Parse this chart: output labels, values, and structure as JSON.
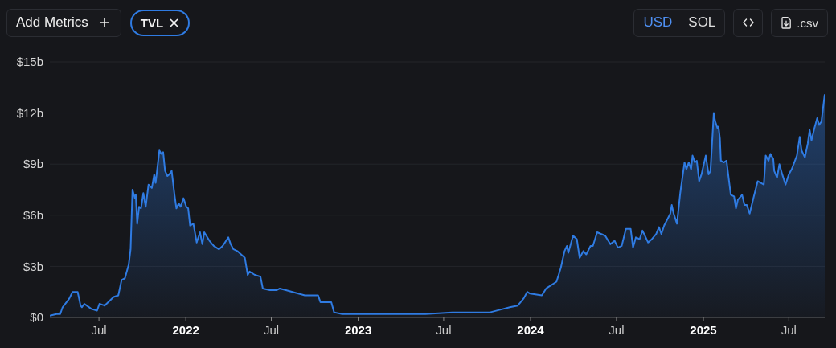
{
  "chart_data": {
    "type": "area",
    "x": [
      "2021-03-19",
      "2021-04-02",
      "2021-04-10",
      "2021-04-15",
      "2021-04-29",
      "2021-05-06",
      "2021-05-12",
      "2021-05-17",
      "2021-05-23",
      "2021-05-26",
      "2021-05-31",
      "2021-06-05",
      "2021-06-15",
      "2021-06-27",
      "2021-07-02",
      "2021-07-13",
      "2021-08-01",
      "2021-08-11",
      "2021-08-18",
      "2021-08-25",
      "2021-09-02",
      "2021-09-06",
      "2021-09-10",
      "2021-09-15",
      "2021-09-17",
      "2021-09-20",
      "2021-09-24",
      "2021-09-28",
      "2021-10-03",
      "2021-10-08",
      "2021-10-14",
      "2021-10-21",
      "2021-10-26",
      "2021-10-29",
      "2021-11-06",
      "2021-11-10",
      "2021-11-14",
      "2021-11-18",
      "2021-11-23",
      "2021-11-27",
      "2021-12-02",
      "2021-12-08",
      "2021-12-12",
      "2021-12-17",
      "2021-12-21",
      "2021-12-27",
      "2022-01-02",
      "2022-01-06",
      "2022-01-10",
      "2022-01-17",
      "2022-01-24",
      "2022-01-31",
      "2022-02-05",
      "2022-02-09",
      "2022-02-20",
      "2022-03-01",
      "2022-03-12",
      "2022-03-20",
      "2022-04-01",
      "2022-04-06",
      "2022-04-12",
      "2022-04-20",
      "2022-05-06",
      "2022-05-12",
      "2022-05-16",
      "2022-05-27",
      "2022-06-08",
      "2022-06-13",
      "2022-06-28",
      "2022-07-12",
      "2022-07-19",
      "2022-08-01",
      "2022-09-10",
      "2022-10-08",
      "2022-10-13",
      "2022-11-05",
      "2022-11-11",
      "2022-11-28",
      "2023-01-01",
      "2023-02-10",
      "2023-05-23",
      "2023-07-19",
      "2023-10-07",
      "2023-11-04",
      "2023-11-18",
      "2023-12-05",
      "2023-12-17",
      "2023-12-25",
      "2023-12-31",
      "2024-01-25",
      "2024-02-03",
      "2024-02-25",
      "2024-03-05",
      "2024-03-13",
      "2024-03-18",
      "2024-03-21",
      "2024-03-31",
      "2024-04-08",
      "2024-04-14",
      "2024-04-22",
      "2024-04-28",
      "2024-05-07",
      "2024-05-12",
      "2024-05-21",
      "2024-06-07",
      "2024-06-18",
      "2024-06-27",
      "2024-07-04",
      "2024-07-12",
      "2024-07-21",
      "2024-07-31",
      "2024-08-05",
      "2024-08-11",
      "2024-08-19",
      "2024-08-25",
      "2024-09-06",
      "2024-09-14",
      "2024-09-23",
      "2024-09-29",
      "2024-10-04",
      "2024-10-10",
      "2024-10-23",
      "2024-10-26",
      "2024-10-30",
      "2024-11-06",
      "2024-11-13",
      "2024-11-22",
      "2024-11-26",
      "2024-12-01",
      "2024-12-06",
      "2024-12-09",
      "2024-12-14",
      "2024-12-18",
      "2024-12-23",
      "2024-12-28",
      "2025-01-06",
      "2025-01-12",
      "2025-01-16",
      "2025-01-23",
      "2025-01-26",
      "2025-01-31",
      "2025-02-02",
      "2025-02-05",
      "2025-02-07",
      "2025-02-13",
      "2025-02-19",
      "2025-02-23",
      "2025-02-28",
      "2025-03-07",
      "2025-03-11",
      "2025-03-15",
      "2025-03-24",
      "2025-03-29",
      "2025-04-03",
      "2025-04-09",
      "2025-04-16",
      "2025-04-26",
      "2025-05-09",
      "2025-05-13",
      "2025-05-19",
      "2025-05-23",
      "2025-05-29",
      "2025-05-31",
      "2025-06-06",
      "2025-06-11",
      "2025-06-17",
      "2025-06-24",
      "2025-07-01",
      "2025-07-07",
      "2025-07-18",
      "2025-07-24",
      "2025-07-28",
      "2025-08-04",
      "2025-08-10",
      "2025-08-14",
      "2025-08-18",
      "2025-08-24",
      "2025-08-30",
      "2025-09-03",
      "2025-09-08",
      "2025-09-11",
      "2025-09-15"
    ],
    "series": [
      {
        "name": "TVL",
        "color": "#2f7be2",
        "values": [
          0.1,
          0.2,
          0.2,
          0.6,
          1.1,
          1.5,
          1.5,
          1.5,
          0.7,
          0.6,
          0.8,
          0.7,
          0.5,
          0.4,
          0.8,
          0.7,
          1.2,
          1.3,
          2.2,
          2.3,
          3.1,
          4.0,
          7.5,
          7.0,
          7.2,
          5.5,
          6.5,
          6.4,
          7.3,
          6.5,
          7.8,
          7.6,
          8.4,
          7.9,
          9.8,
          9.6,
          9.7,
          8.6,
          8.3,
          8.4,
          8.6,
          7.2,
          6.4,
          6.7,
          6.5,
          7.0,
          6.5,
          6.4,
          5.4,
          5.5,
          4.4,
          5.0,
          4.3,
          5.0,
          4.5,
          4.2,
          4.0,
          4.2,
          4.7,
          4.3,
          4.0,
          3.9,
          3.5,
          2.5,
          2.7,
          2.5,
          2.4,
          1.7,
          1.6,
          1.6,
          1.7,
          1.6,
          1.3,
          1.3,
          0.9,
          0.9,
          0.3,
          0.2,
          0.2,
          0.2,
          0.2,
          0.3,
          0.3,
          0.5,
          0.6,
          0.7,
          1.1,
          1.5,
          1.4,
          1.3,
          1.7,
          2.1,
          2.9,
          3.9,
          4.2,
          3.8,
          4.8,
          4.6,
          3.5,
          3.9,
          3.7,
          4.2,
          4.2,
          5.0,
          4.8,
          4.3,
          4.5,
          4.1,
          4.2,
          5.2,
          5.2,
          4.1,
          4.7,
          4.6,
          5.1,
          4.4,
          4.6,
          4.9,
          5.3,
          4.9,
          5.4,
          6.1,
          6.6,
          6.1,
          5.5,
          7.3,
          9.1,
          8.7,
          9.1,
          8.7,
          9.5,
          9.1,
          9.2,
          8.0,
          8.4,
          9.5,
          8.4,
          8.6,
          12.0,
          11.5,
          11.1,
          11.2,
          10.5,
          9.2,
          9.1,
          9.2,
          8.3,
          7.2,
          7.1,
          6.4,
          6.9,
          7.2,
          6.6,
          6.6,
          6.1,
          6.9,
          8.0,
          7.8,
          9.5,
          9.2,
          9.6,
          9.3,
          8.6,
          8.2,
          9.0,
          8.4,
          7.8,
          8.4,
          8.7,
          9.5,
          10.6,
          9.8,
          9.4,
          10.2,
          11.0,
          10.4,
          11.1,
          11.7,
          11.3,
          11.5,
          12.2,
          13.1
        ]
      }
    ],
    "xlim": [
      "2021-03-19",
      "2025-09-15"
    ],
    "xticks": [
      {
        "value": "2021-07-01",
        "label": "Jul"
      },
      {
        "value": "2022-01-01",
        "label": "2022"
      },
      {
        "value": "2022-07-01",
        "label": "Jul"
      },
      {
        "value": "2023-01-01",
        "label": "2023"
      },
      {
        "value": "2023-07-01",
        "label": "Jul"
      },
      {
        "value": "2024-01-01",
        "label": "2024"
      },
      {
        "value": "2024-07-01",
        "label": "Jul"
      },
      {
        "value": "2025-01-01",
        "label": "2025"
      },
      {
        "value": "2025-07-01",
        "label": "Jul"
      }
    ],
    "ylim": [
      0,
      15
    ],
    "yticks": [
      {
        "value": 0,
        "label": "$0"
      },
      {
        "value": 3,
        "label": "$3b"
      },
      {
        "value": 6,
        "label": "$6b"
      },
      {
        "value": 9,
        "label": "$9b"
      },
      {
        "value": 12,
        "label": "$12b"
      },
      {
        "value": 15,
        "label": "$15b"
      }
    ],
    "grid": "y",
    "legend": "top left",
    "annotations": [
      "Add Metrics",
      "USD",
      "SOL",
      ".csv"
    ]
  }
}
